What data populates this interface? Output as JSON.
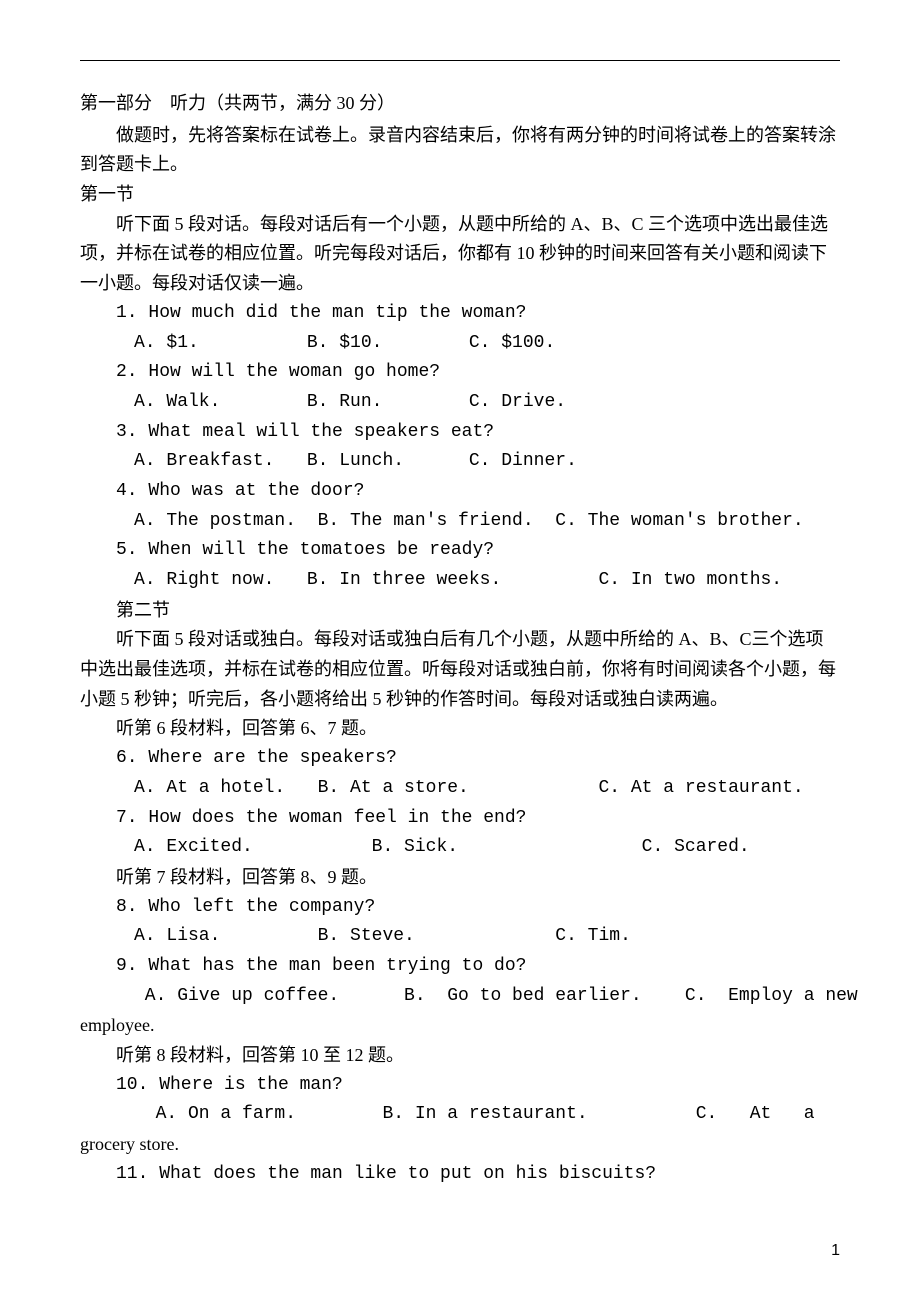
{
  "topLine": true,
  "part1Header": "第一部分　听力（共两节，满分 30 分）",
  "part1Intro": "做题时，先将答案标在试卷上。录音内容结束后，你将有两分钟的时间将试卷上的答案转涂到答题卡上。",
  "section1Header": "第一节",
  "section1Intro": "听下面 5 段对话。每段对话后有一个小题，从题中所给的 A、B、C 三个选项中选出最佳选项，并标在试卷的相应位置。听完每段对话后，你都有 10 秒钟的时间来回答有关小题和阅读下一小题。每段对话仅读一遍。",
  "q1": {
    "text": "1. How much did the man tip the woman?",
    "options": "A. $1.          B. $10.        C. $100."
  },
  "q2": {
    "text": "2. How will the woman go home?",
    "options": "A. Walk.        B. Run.        C. Drive."
  },
  "q3": {
    "text": "3. What meal will the speakers eat?",
    "options": "A. Breakfast.   B. Lunch.      C. Dinner."
  },
  "q4": {
    "text": "4. Who was at the door?",
    "options": "A. The postman.  B. The man's friend.  C. The woman's brother."
  },
  "q5": {
    "text": "5. When will the tomatoes be ready?",
    "options": "A. Right now.   B. In three weeks.         C. In two months."
  },
  "section2Header": "第二节",
  "section2Intro": "听下面 5 段对话或独白。每段对话或独白后有几个小题，从题中所给的 A、B、C三个选项中选出最佳选项，并标在试卷的相应位置。听每段对话或独白前，你将有时间阅读各个小题，每小题 5 秒钟；听完后，各小题将给出 5 秒钟的作答时间。每段对话或独白读两遍。",
  "material6": "听第 6 段材料，回答第 6、7 题。",
  "q6": {
    "text": "6. Where are the speakers?",
    "options": "A. At a hotel.   B. At a store.            C. At a restaurant."
  },
  "q7": {
    "text": "7. How does the woman feel in the end?",
    "options": "A. Excited.           B. Sick.                 C. Scared."
  },
  "material7": "听第 7 段材料，回答第 8、9 题。",
  "q8": {
    "text": "8. Who left the company?",
    "options": "A. Lisa.         B. Steve.             C. Tim."
  },
  "q9": {
    "text": "9. What has the man been trying to do?",
    "options": " A. Give up coffee.      B.  Go to bed earlier.    C.  Employ a new"
  },
  "q9cont": "employee.",
  "material8": "听第 8 段材料，回答第 10 至 12 题。",
  "q10": {
    "text": "10. Where is the man?",
    "options": "  A. On a farm.        B. In a restaurant.          C.   At   a"
  },
  "q10cont": "grocery store.",
  "q11": {
    "text": "11. What does the man like to put on his biscuits?"
  },
  "pageNumber": "1"
}
